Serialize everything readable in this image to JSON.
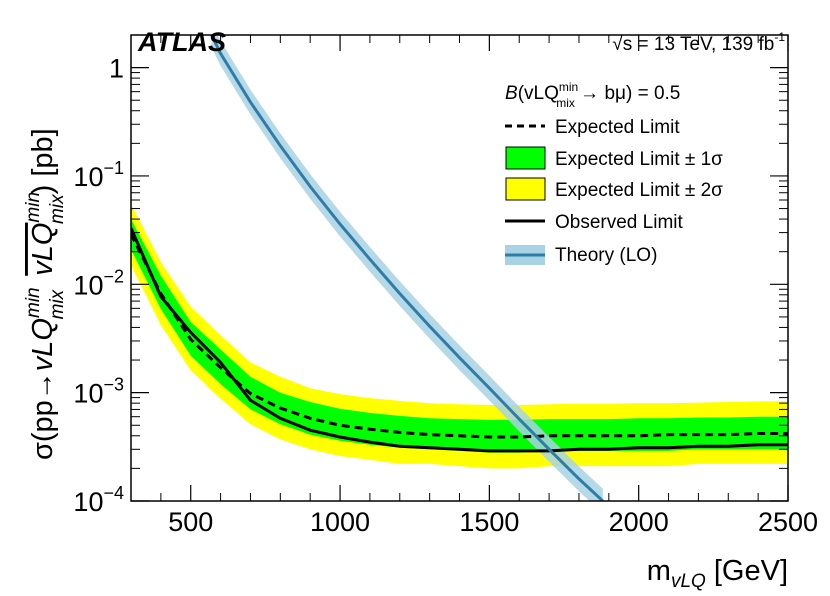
{
  "chart_data": {
    "type": "line",
    "experiment": "ATLAS",
    "energy_label": "√s = 13 TeV, 139 fb",
    "energy_label_sup": "-1",
    "condition": {
      "prefix": "B(vLQ",
      "sup": "min",
      "sub": "mix",
      "suffix": " → bμ) = 0.5"
    },
    "xlabel": {
      "main": "m",
      "sub": "vLQ",
      "unit": " [GeV]"
    },
    "ylabel": "σ(pp→vLQ_mix^min vLQ_mix^min) [pb]",
    "xlim": [
      300,
      2500
    ],
    "ylim": [
      0.0001,
      2
    ],
    "yscale": "log",
    "x_ticks": [
      500,
      1000,
      1500,
      2000,
      2500
    ],
    "x_tick_labels": [
      "500",
      "1000",
      "1500",
      "2000",
      "2500"
    ],
    "y_ticks": [
      0.0001,
      0.001,
      0.01,
      0.1,
      1
    ],
    "y_tick_labels": [
      {
        "base": "10",
        "exp": "−4"
      },
      {
        "base": "10",
        "exp": "−3"
      },
      {
        "base": "10",
        "exp": "−2"
      },
      {
        "base": "10",
        "exp": "−1"
      },
      {
        "base": "1",
        "exp": ""
      }
    ],
    "legend": [
      {
        "label": "Expected Limit",
        "style": "dashed",
        "color": "#000000"
      },
      {
        "label": "Expected Limit ± 1σ",
        "style": "band",
        "color": "#00ff00"
      },
      {
        "label": "Expected Limit ± 2σ",
        "style": "band",
        "color": "#ffff00"
      },
      {
        "label": "Observed Limit",
        "style": "solid",
        "color": "#000000"
      },
      {
        "label": "Theory (LO)",
        "style": "line-band",
        "color": "#2e7da8",
        "band_color": "#a9d2e3"
      }
    ],
    "x": [
      300,
      400,
      500,
      600,
      700,
      800,
      900,
      1000,
      1100,
      1200,
      1300,
      1400,
      1500,
      1600,
      1700,
      1800,
      1900,
      2000,
      2100,
      2200,
      2300,
      2400,
      2500
    ],
    "series": [
      {
        "name": "Observed Limit",
        "values": [
          0.033,
          0.0077,
          0.0036,
          0.0019,
          0.00085,
          0.00058,
          0.00045,
          0.00039,
          0.00035,
          0.00032,
          0.00031,
          0.0003,
          0.00029,
          0.00029,
          0.00029,
          0.0003,
          0.0003,
          0.00031,
          0.00031,
          0.00032,
          0.00032,
          0.00033,
          0.00033
        ]
      },
      {
        "name": "Expected Limit",
        "values": [
          0.029,
          0.0082,
          0.0031,
          0.0017,
          0.00098,
          0.00072,
          0.00058,
          0.0005,
          0.00046,
          0.00043,
          0.00041,
          0.0004,
          0.00039,
          0.00039,
          0.0004,
          0.0004,
          0.0004,
          0.0004,
          0.00041,
          0.00041,
          0.00041,
          0.00042,
          0.00042
        ]
      },
      {
        "name": "Expected Limit ± 1σ",
        "low": [
          0.021,
          0.0059,
          0.0022,
          0.0012,
          0.0007,
          0.00051,
          0.00041,
          0.00036,
          0.00033,
          0.00031,
          0.0003,
          0.00029,
          0.00028,
          0.00028,
          0.00029,
          0.00029,
          0.00029,
          0.00029,
          0.00029,
          0.0003,
          0.0003,
          0.0003,
          0.0003
        ],
        "high": [
          0.04,
          0.012,
          0.0045,
          0.0025,
          0.0014,
          0.001,
          0.00082,
          0.00071,
          0.00065,
          0.00061,
          0.00058,
          0.00057,
          0.00056,
          0.00056,
          0.00057,
          0.00057,
          0.00057,
          0.00058,
          0.00058,
          0.00059,
          0.00059,
          0.0006,
          0.0006
        ]
      },
      {
        "name": "Expected Limit ± 2σ",
        "low": [
          0.015,
          0.0042,
          0.0016,
          0.00088,
          0.00051,
          0.00037,
          0.0003,
          0.00026,
          0.00024,
          0.00022,
          0.00022,
          0.00021,
          0.0002,
          0.0002,
          0.00021,
          0.00021,
          0.00021,
          0.00021,
          0.00021,
          0.00022,
          0.00022,
          0.00022,
          0.00022
        ],
        "high": [
          0.055,
          0.016,
          0.0062,
          0.0034,
          0.0019,
          0.0014,
          0.0011,
          0.00097,
          0.00089,
          0.00084,
          0.0008,
          0.00078,
          0.00077,
          0.00077,
          0.00078,
          0.00079,
          0.00079,
          0.0008,
          0.0008,
          0.00081,
          0.00082,
          0.00083,
          0.00083
        ]
      },
      {
        "name": "Theory (LO)",
        "x": [
          570,
          600,
          700,
          800,
          900,
          1000,
          1100,
          1200,
          1300,
          1400,
          1500,
          1600,
          1700,
          1800,
          1880
        ],
        "values": [
          2.0,
          1.35,
          0.48,
          0.19,
          0.08,
          0.036,
          0.017,
          0.0082,
          0.0041,
          0.0021,
          0.0011,
          0.00057,
          0.0003,
          0.00016,
          0.0001
        ],
        "band_factor": 1.3
      }
    ]
  }
}
